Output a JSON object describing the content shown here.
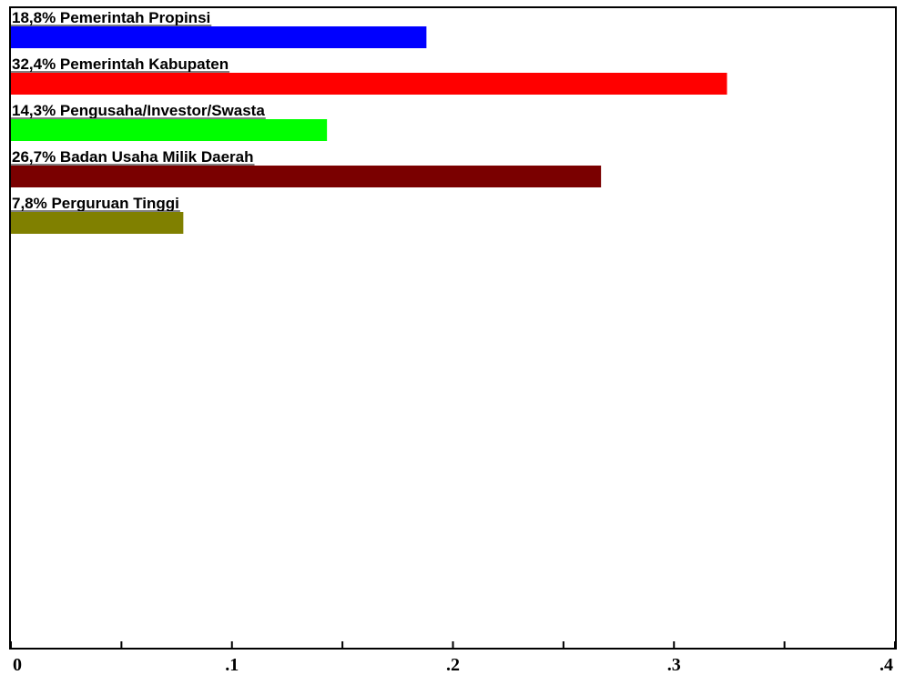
{
  "chart_data": {
    "type": "bar",
    "orientation": "horizontal",
    "categories": [
      "18,8% Pemerintah Propinsi",
      "32,4% Pemerintah Kabupaten",
      "14,3% Pengusaha/Investor/Swasta",
      "26,7% Badan Usaha Milik Daerah",
      "7,8% Perguruan Tinggi"
    ],
    "values": [
      0.188,
      0.324,
      0.143,
      0.267,
      0.078
    ],
    "colors": [
      "#0000ff",
      "#ff0000",
      "#00ff00",
      "#7a0000",
      "#808000"
    ],
    "xlim": [
      0,
      0.4
    ],
    "x_ticks": [
      0,
      0.05,
      0.1,
      0.15,
      0.2,
      0.25,
      0.3,
      0.35,
      0.4
    ],
    "x_tick_labels": [
      "0",
      "",
      ".1",
      "",
      ".2",
      "",
      ".3",
      "",
      ".4"
    ],
    "grid": false,
    "legend": "none"
  }
}
